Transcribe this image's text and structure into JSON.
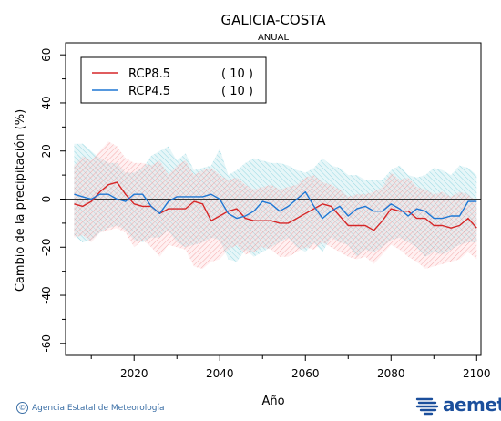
{
  "chart_data": {
    "type": "line",
    "title": "GALICIA-COSTA",
    "subtitle": "ANUAL",
    "xlabel": "Año",
    "ylabel": "Cambio de la precipitación (%)",
    "xlim": [
      2004,
      2101
    ],
    "ylim": [
      -65,
      65
    ],
    "xticks": [
      2020,
      2040,
      2060,
      2080,
      2100
    ],
    "yticks": [
      -60,
      -40,
      -20,
      0,
      20,
      40,
      60
    ],
    "grid": false,
    "legend_position": "top-left",
    "x": [
      2006,
      2008,
      2010,
      2012,
      2014,
      2016,
      2018,
      2020,
      2022,
      2024,
      2026,
      2028,
      2030,
      2032,
      2034,
      2036,
      2038,
      2040,
      2042,
      2044,
      2046,
      2048,
      2050,
      2052,
      2054,
      2056,
      2058,
      2060,
      2062,
      2064,
      2066,
      2068,
      2070,
      2072,
      2074,
      2076,
      2078,
      2080,
      2082,
      2084,
      2086,
      2088,
      2090,
      2092,
      2094,
      2096,
      2098,
      2100
    ],
    "series": [
      {
        "name": "RCP8.5",
        "members": "( 10 )",
        "color": "#d62728",
        "values": [
          -2,
          -3,
          -1,
          3,
          6,
          7,
          2,
          -2,
          -3,
          -3,
          -6,
          -4,
          -4,
          -4,
          -1,
          -2,
          -9,
          -7,
          -5,
          -4,
          -8,
          -9,
          -9,
          -9,
          -10,
          -10,
          -8,
          -6,
          -4,
          -2,
          -3,
          -7,
          -11,
          -11,
          -11,
          -13,
          -9,
          -4,
          -5,
          -5,
          -8,
          -8,
          -11,
          -11,
          -12,
          -11,
          -8,
          -12
        ],
        "band_upper": [
          14,
          18,
          16,
          20,
          24,
          22,
          17,
          15,
          15,
          14,
          16,
          10,
          14,
          16,
          10,
          12,
          13,
          10,
          8,
          9,
          6,
          4,
          5,
          6,
          4,
          5,
          6,
          9,
          10,
          7,
          6,
          4,
          1,
          2,
          2,
          3,
          5,
          11,
          8,
          9,
          5,
          4,
          2,
          3,
          1,
          3,
          2,
          -1
        ],
        "band_lower": [
          -16,
          -15,
          -18,
          -14,
          -13,
          -12,
          -14,
          -20,
          -17,
          -20,
          -24,
          -19,
          -20,
          -21,
          -28,
          -29,
          -26,
          -25,
          -21,
          -19,
          -23,
          -22,
          -20,
          -21,
          -24,
          -24,
          -22,
          -20,
          -21,
          -18,
          -20,
          -22,
          -24,
          -25,
          -24,
          -27,
          -23,
          -19,
          -21,
          -24,
          -26,
          -29,
          -28,
          -27,
          -26,
          -25,
          -22,
          -25
        ]
      },
      {
        "name": "RCP4.5",
        "members": "( 10 )",
        "color": "#1f77d4",
        "values": [
          2,
          1,
          0,
          2,
          2,
          0,
          -1,
          2,
          2,
          -3,
          -6,
          -1,
          1,
          1,
          1,
          1,
          2,
          0,
          -6,
          -8,
          -7,
          -5,
          -1,
          -2,
          -5,
          -3,
          0,
          3,
          -3,
          -8,
          -5,
          -3,
          -7,
          -4,
          -3,
          -5,
          -5,
          -2,
          -4,
          -7,
          -4,
          -5,
          -8,
          -8,
          -7,
          -7,
          -1,
          -1
        ],
        "band_upper": [
          23,
          23,
          20,
          17,
          15,
          15,
          11,
          11,
          13,
          18,
          20,
          22,
          16,
          19,
          12,
          13,
          14,
          21,
          10,
          12,
          15,
          17,
          16,
          15,
          15,
          14,
          12,
          11,
          13,
          17,
          14,
          13,
          10,
          10,
          8,
          8,
          8,
          12,
          14,
          10,
          9,
          10,
          13,
          12,
          10,
          14,
          13,
          10
        ],
        "band_lower": [
          -15,
          -18,
          -17,
          -14,
          -12,
          -11,
          -13,
          -17,
          -18,
          -16,
          -16,
          -13,
          -18,
          -20,
          -19,
          -18,
          -16,
          -17,
          -25,
          -26,
          -21,
          -24,
          -22,
          -20,
          -18,
          -16,
          -20,
          -22,
          -18,
          -22,
          -16,
          -18,
          -19,
          -24,
          -21,
          -22,
          -20,
          -17,
          -16,
          -18,
          -20,
          -24,
          -22,
          -23,
          -21,
          -19,
          -18,
          -18
        ]
      }
    ]
  },
  "footer": {
    "credit": "Agencia Estatal de Meteorología",
    "copyright_symbol": "©",
    "logo_text": "aemet"
  }
}
